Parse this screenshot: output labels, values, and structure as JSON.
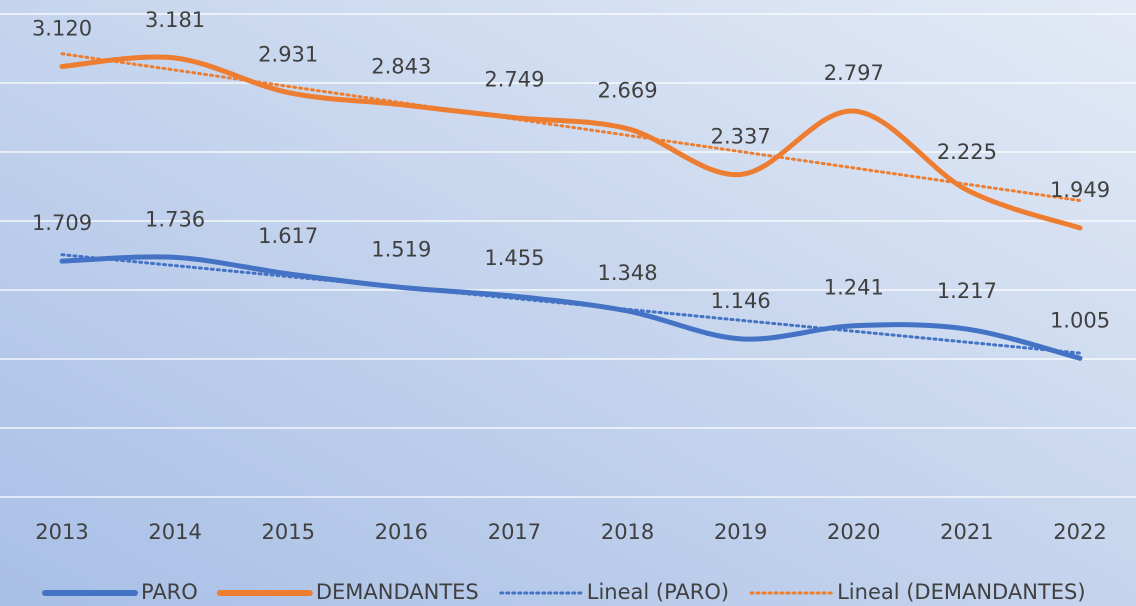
{
  "chart_data": {
    "type": "line",
    "categories": [
      "2013",
      "2014",
      "2015",
      "2016",
      "2017",
      "2018",
      "2019",
      "2020",
      "2021",
      "2022"
    ],
    "series": [
      {
        "name": "PARO",
        "color": "#4472c4",
        "values": [
          1709,
          1736,
          1617,
          1519,
          1455,
          1348,
          1146,
          1241,
          1217,
          1005
        ],
        "value_labels": [
          "1.709",
          "1.736",
          "1.617",
          "1.519",
          "1.455",
          "1.348",
          "1.146",
          "1.241",
          "1.217",
          "1.005"
        ],
        "trendline": "linear",
        "trendline_name": "Lineal (PARO)"
      },
      {
        "name": "DEMANDANTES",
        "color": "#ed7d31",
        "values": [
          3120,
          3181,
          2931,
          2843,
          2749,
          2669,
          2337,
          2797,
          2225,
          1949
        ],
        "value_labels": [
          "3.120",
          "3.181",
          "2.931",
          "2.843",
          "2.749",
          "2.669",
          "2.337",
          "2.797",
          "2.225",
          "1.949"
        ],
        "trendline": "linear",
        "trendline_name": "Lineal (DEMANDANTES)"
      }
    ],
    "ylim": [
      0,
      3500
    ],
    "yticks": [
      0,
      500,
      1000,
      1500,
      2000,
      2500,
      3000,
      3500
    ],
    "ytick_labels": false,
    "grid": true,
    "smooth": true,
    "legend": "bottom"
  }
}
